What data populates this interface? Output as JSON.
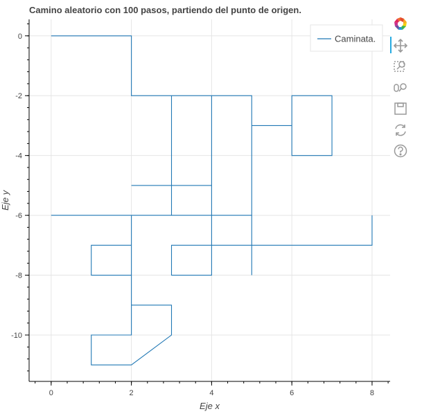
{
  "title": "Camino aleatorio con 100 pasos, partiendo del punto de origen.",
  "toolbar": {
    "tools": [
      {
        "icon": "bokeh-logo-icon"
      },
      {
        "icon": "pan-icon"
      },
      {
        "icon": "box-zoom-icon"
      },
      {
        "icon": "wheel-zoom-icon"
      },
      {
        "icon": "save-icon"
      },
      {
        "icon": "reset-icon"
      },
      {
        "icon": "help-icon"
      }
    ]
  },
  "chart_data": {
    "type": "line",
    "title": "Camino aleatorio con 100 pasos, partiendo del punto de origen.",
    "xlabel": "Eje x",
    "ylabel": "Eje y",
    "xlim": [
      -0.55,
      8.45
    ],
    "ylim": [
      -11.55,
      0.55
    ],
    "xticks": [
      0,
      2,
      4,
      6,
      8
    ],
    "yticks": [
      0,
      -2,
      -4,
      -6,
      -8,
      -10
    ],
    "grid": true,
    "legend_position": "top-right",
    "series": [
      {
        "name": "Caminata.",
        "color": "#1f77b4",
        "x": [
          0,
          1,
          2,
          2,
          3,
          3,
          3,
          2,
          3,
          4,
          4,
          3,
          2,
          2,
          1,
          1,
          1,
          2,
          2,
          2,
          1,
          1,
          2,
          3,
          3,
          2,
          2,
          2,
          2,
          2,
          1,
          1,
          0,
          1,
          2,
          3,
          4,
          4,
          3,
          3,
          4,
          4,
          3,
          3,
          4,
          5,
          5,
          5,
          6,
          6,
          6,
          7,
          7,
          6,
          6,
          5,
          5,
          5,
          5,
          4,
          4,
          4,
          4,
          3,
          3,
          3,
          4,
          5,
          6,
          7,
          8,
          8
        ],
        "y": [
          0,
          0,
          0,
          -2,
          -2,
          -3,
          -5,
          -5,
          -5,
          -5,
          -6,
          -6,
          -6,
          -7,
          -7,
          -8,
          -8,
          -8,
          -9,
          -10,
          -10,
          -11,
          -11,
          -10,
          -9,
          -9,
          -8,
          -7,
          -6,
          -6,
          -6,
          -6,
          -6,
          -6,
          -6,
          -6,
          -6,
          -5,
          -5,
          -6,
          -6,
          -2,
          -2,
          -2,
          -2,
          -2,
          -3,
          -3,
          -3,
          -2,
          -2,
          -2,
          -4,
          -4,
          -3,
          -3,
          -5,
          -8,
          -6,
          -6,
          -8,
          -7,
          -8,
          -8,
          -7,
          -7,
          -7,
          -7,
          -7,
          -7,
          -7,
          -6
        ]
      }
    ]
  }
}
